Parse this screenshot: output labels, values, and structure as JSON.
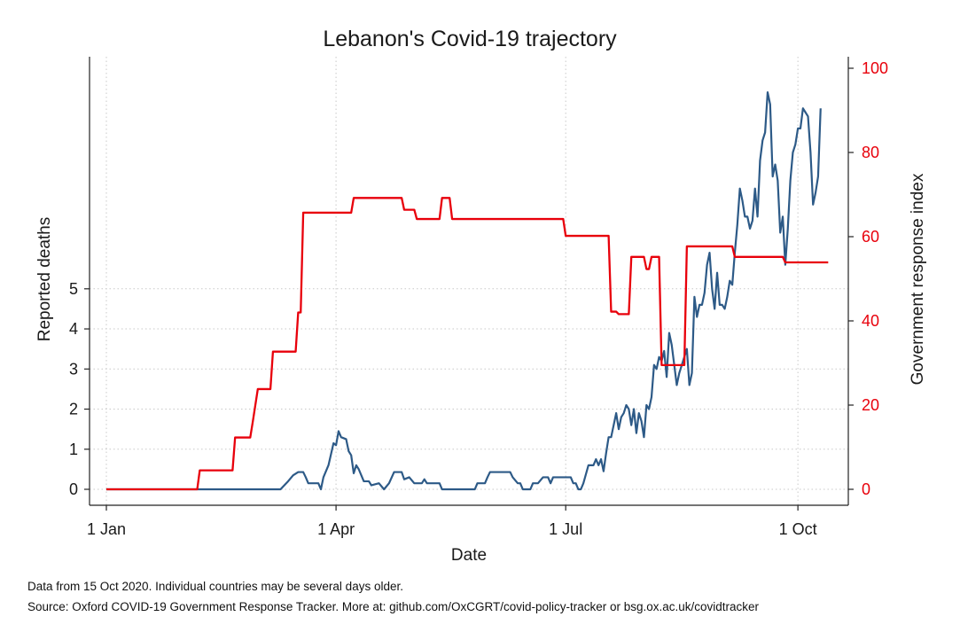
{
  "chart_data": {
    "type": "line",
    "title": "Lebanon's Covid-19 trajectory",
    "xlabel": "Date",
    "ylabel_left": "Reported deaths",
    "ylabel_right": "Government response index",
    "x_ticks": [
      "1 Jan",
      "1 Apr",
      "1 Jul",
      "1 Oct"
    ],
    "y_ticks_left": [
      "0",
      "1",
      "2",
      "3",
      "4",
      "5"
    ],
    "y_ticks_right": [
      "0",
      "20",
      "40",
      "60",
      "80",
      "100"
    ],
    "ylim_left": [
      0,
      10.5
    ],
    "ylim_right": [
      0,
      100
    ],
    "xlim": [
      "2020-01-01",
      "2020-10-15"
    ],
    "grid": true,
    "colors": {
      "deaths": "#2d5a87",
      "response": "#e8000b",
      "grid": "#c8c8c8"
    },
    "series": [
      {
        "axis": "left",
        "points": [
          [
            "2020-01-01",
            0
          ],
          [
            "2020-02-21",
            0
          ],
          [
            "2020-03-10",
            0
          ],
          [
            "2020-03-13",
            0.2
          ],
          [
            "2020-03-15",
            0.35
          ],
          [
            "2020-03-17",
            0.43
          ],
          [
            "2020-03-19",
            0.43
          ],
          [
            "2020-03-20",
            0.3
          ],
          [
            "2020-03-21",
            0.15
          ],
          [
            "2020-03-23",
            0.15
          ],
          [
            "2020-03-25",
            0.15
          ],
          [
            "2020-03-26",
            0
          ],
          [
            "2020-03-27",
            0.3
          ],
          [
            "2020-03-29",
            0.6
          ],
          [
            "2020-03-31",
            1.15
          ],
          [
            "2020-04-01",
            1.1
          ],
          [
            "2020-04-02",
            1.45
          ],
          [
            "2020-04-03",
            1.3
          ],
          [
            "2020-04-05",
            1.25
          ],
          [
            "2020-04-06",
            0.95
          ],
          [
            "2020-04-07",
            0.85
          ],
          [
            "2020-04-08",
            0.4
          ],
          [
            "2020-04-09",
            0.6
          ],
          [
            "2020-04-10",
            0.5
          ],
          [
            "2020-04-12",
            0.2
          ],
          [
            "2020-04-14",
            0.2
          ],
          [
            "2020-04-15",
            0.1
          ],
          [
            "2020-04-18",
            0.15
          ],
          [
            "2020-04-20",
            0
          ],
          [
            "2020-04-22",
            0.15
          ],
          [
            "2020-04-24",
            0.43
          ],
          [
            "2020-04-27",
            0.43
          ],
          [
            "2020-04-28",
            0.25
          ],
          [
            "2020-04-30",
            0.3
          ],
          [
            "2020-05-02",
            0.15
          ],
          [
            "2020-05-05",
            0.15
          ],
          [
            "2020-05-06",
            0.25
          ],
          [
            "2020-05-07",
            0.15
          ],
          [
            "2020-05-12",
            0.15
          ],
          [
            "2020-05-13",
            0
          ],
          [
            "2020-05-26",
            0
          ],
          [
            "2020-05-27",
            0.15
          ],
          [
            "2020-05-30",
            0.15
          ],
          [
            "2020-05-31",
            0.3
          ],
          [
            "2020-06-01",
            0.43
          ],
          [
            "2020-06-09",
            0.43
          ],
          [
            "2020-06-10",
            0.3
          ],
          [
            "2020-06-12",
            0.15
          ],
          [
            "2020-06-13",
            0.15
          ],
          [
            "2020-06-14",
            0
          ],
          [
            "2020-06-17",
            0
          ],
          [
            "2020-06-18",
            0.15
          ],
          [
            "2020-06-20",
            0.15
          ],
          [
            "2020-06-22",
            0.3
          ],
          [
            "2020-06-24",
            0.3
          ],
          [
            "2020-06-25",
            0.15
          ],
          [
            "2020-06-26",
            0.3
          ],
          [
            "2020-07-03",
            0.3
          ],
          [
            "2020-07-04",
            0.15
          ],
          [
            "2020-07-05",
            0.15
          ],
          [
            "2020-07-06",
            0
          ],
          [
            "2020-07-07",
            0
          ],
          [
            "2020-07-08",
            0.15
          ],
          [
            "2020-07-10",
            0.6
          ],
          [
            "2020-07-12",
            0.6
          ],
          [
            "2020-07-13",
            0.75
          ],
          [
            "2020-07-14",
            0.6
          ],
          [
            "2020-07-15",
            0.75
          ],
          [
            "2020-07-16",
            0.45
          ],
          [
            "2020-07-17",
            0.9
          ],
          [
            "2020-07-18",
            1.3
          ],
          [
            "2020-07-19",
            1.3
          ],
          [
            "2020-07-20",
            1.6
          ],
          [
            "2020-07-21",
            1.9
          ],
          [
            "2020-07-22",
            1.5
          ],
          [
            "2020-07-23",
            1.8
          ],
          [
            "2020-07-24",
            1.9
          ],
          [
            "2020-07-25",
            2.1
          ],
          [
            "2020-07-26",
            2.0
          ],
          [
            "2020-07-27",
            1.6
          ],
          [
            "2020-07-28",
            2.0
          ],
          [
            "2020-07-29",
            1.4
          ],
          [
            "2020-07-30",
            1.9
          ],
          [
            "2020-07-31",
            1.7
          ],
          [
            "2020-08-01",
            1.3
          ],
          [
            "2020-08-02",
            2.1
          ],
          [
            "2020-08-03",
            2.0
          ],
          [
            "2020-08-04",
            2.3
          ],
          [
            "2020-08-05",
            3.1
          ],
          [
            "2020-08-06",
            3.0
          ],
          [
            "2020-08-07",
            3.3
          ],
          [
            "2020-08-08",
            3.2
          ],
          [
            "2020-08-09",
            3.45
          ],
          [
            "2020-08-10",
            2.8
          ],
          [
            "2020-08-11",
            3.9
          ],
          [
            "2020-08-12",
            3.6
          ],
          [
            "2020-08-13",
            3.1
          ],
          [
            "2020-08-14",
            2.6
          ],
          [
            "2020-08-15",
            2.9
          ],
          [
            "2020-08-16",
            3.1
          ],
          [
            "2020-08-17",
            3.3
          ],
          [
            "2020-08-18",
            3.5
          ],
          [
            "2020-08-19",
            2.6
          ],
          [
            "2020-08-20",
            2.9
          ],
          [
            "2020-08-21",
            4.8
          ],
          [
            "2020-08-22",
            4.3
          ],
          [
            "2020-08-23",
            4.6
          ],
          [
            "2020-08-24",
            4.6
          ],
          [
            "2020-08-25",
            4.9
          ],
          [
            "2020-08-26",
            5.6
          ],
          [
            "2020-08-27",
            5.9
          ],
          [
            "2020-08-28",
            5.0
          ],
          [
            "2020-08-29",
            4.5
          ],
          [
            "2020-08-30",
            5.4
          ],
          [
            "2020-08-31",
            4.6
          ],
          [
            "2020-09-01",
            4.6
          ],
          [
            "2020-09-02",
            4.5
          ],
          [
            "2020-09-03",
            4.8
          ],
          [
            "2020-09-04",
            5.2
          ],
          [
            "2020-09-05",
            5.1
          ],
          [
            "2020-09-06",
            5.9
          ],
          [
            "2020-09-07",
            6.6
          ],
          [
            "2020-09-08",
            7.5
          ],
          [
            "2020-09-09",
            7.2
          ],
          [
            "2020-09-10",
            6.8
          ],
          [
            "2020-09-11",
            6.8
          ],
          [
            "2020-09-12",
            6.5
          ],
          [
            "2020-09-13",
            6.7
          ],
          [
            "2020-09-14",
            7.5
          ],
          [
            "2020-09-15",
            6.8
          ],
          [
            "2020-09-16",
            8.2
          ],
          [
            "2020-09-17",
            8.7
          ],
          [
            "2020-09-18",
            8.9
          ],
          [
            "2020-09-19",
            9.9
          ],
          [
            "2020-09-20",
            9.6
          ],
          [
            "2020-09-21",
            7.8
          ],
          [
            "2020-09-22",
            8.1
          ],
          [
            "2020-09-23",
            7.7
          ],
          [
            "2020-09-24",
            6.4
          ],
          [
            "2020-09-25",
            6.8
          ],
          [
            "2020-09-26",
            5.6
          ],
          [
            "2020-09-27",
            6.5
          ],
          [
            "2020-09-28",
            7.7
          ],
          [
            "2020-09-29",
            8.4
          ],
          [
            "2020-09-30",
            8.6
          ],
          [
            "2020-10-01",
            9.0
          ],
          [
            "2020-10-02",
            9.0
          ],
          [
            "2020-10-03",
            9.5
          ],
          [
            "2020-10-04",
            9.4
          ],
          [
            "2020-10-05",
            9.3
          ],
          [
            "2020-10-06",
            8.4
          ],
          [
            "2020-10-07",
            7.1
          ],
          [
            "2020-10-08",
            7.4
          ],
          [
            "2020-10-09",
            7.8
          ],
          [
            "2020-10-10",
            9.5
          ]
        ]
      },
      {
        "axis": "right",
        "points": [
          [
            "2020-01-01",
            0
          ],
          [
            "2020-02-06",
            0
          ],
          [
            "2020-02-07",
            4.5
          ],
          [
            "2020-02-20",
            4.5
          ],
          [
            "2020-02-21",
            12.3
          ],
          [
            "2020-02-27",
            12.3
          ],
          [
            "2020-02-28",
            16
          ],
          [
            "2020-03-01",
            23.8
          ],
          [
            "2020-03-06",
            23.8
          ],
          [
            "2020-03-07",
            32.7
          ],
          [
            "2020-03-16",
            32.7
          ],
          [
            "2020-03-17",
            42
          ],
          [
            "2020-03-18",
            42
          ],
          [
            "2020-03-19",
            65.7
          ],
          [
            "2020-04-07",
            65.7
          ],
          [
            "2020-04-08",
            69.2
          ],
          [
            "2020-04-27",
            69.2
          ],
          [
            "2020-04-28",
            66.4
          ],
          [
            "2020-05-02",
            66.4
          ],
          [
            "2020-05-03",
            64.2
          ],
          [
            "2020-05-12",
            64.2
          ],
          [
            "2020-05-13",
            69.2
          ],
          [
            "2020-05-16",
            69.2
          ],
          [
            "2020-05-17",
            64.2
          ],
          [
            "2020-06-30",
            64.2
          ],
          [
            "2020-07-01",
            60.2
          ],
          [
            "2020-07-18",
            60.2
          ],
          [
            "2020-07-19",
            42.2
          ],
          [
            "2020-07-21",
            42.2
          ],
          [
            "2020-07-22",
            41.6
          ],
          [
            "2020-07-26",
            41.6
          ],
          [
            "2020-07-27",
            55.2
          ],
          [
            "2020-08-01",
            55.2
          ],
          [
            "2020-08-02",
            52.3
          ],
          [
            "2020-08-03",
            52.3
          ],
          [
            "2020-08-04",
            55.2
          ],
          [
            "2020-08-07",
            55.2
          ],
          [
            "2020-08-08",
            29.5
          ],
          [
            "2020-08-17",
            29.5
          ],
          [
            "2020-08-18",
            57.7
          ],
          [
            "2020-09-05",
            57.7
          ],
          [
            "2020-09-06",
            55.2
          ],
          [
            "2020-09-25",
            55.2
          ],
          [
            "2020-09-26",
            53.9
          ],
          [
            "2020-10-13",
            53.9
          ]
        ]
      }
    ]
  },
  "notes": [
    "Data from 15 Oct 2020. Individual countries may be several days older.",
    "Source: Oxford COVID-19 Government Response Tracker. More at: github.com/OxCGRT/covid-policy-tracker or bsg.ox.ac.uk/covidtracker"
  ]
}
